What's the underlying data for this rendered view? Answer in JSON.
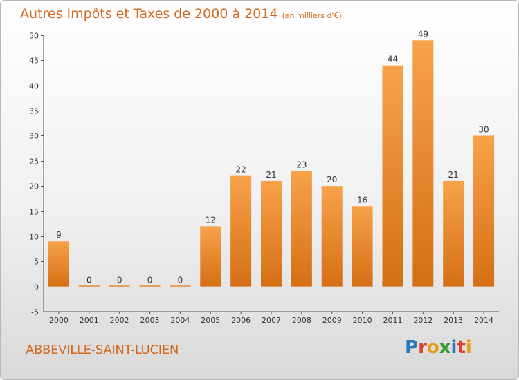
{
  "title": "Autres Impôts et Taxes de 2000 à 2014",
  "subtitle": "(en milliers d'€)",
  "commune": "ABBEVILLE-SAINT-LUCIEN",
  "logo": {
    "letters": [
      "P",
      "r",
      "o",
      "x",
      "i",
      "t",
      "i"
    ],
    "colors": [
      "#2a7ab8",
      "#e0402a",
      "#e89c1a",
      "#3a9a3a",
      "#2a7ab8",
      "#e0402a",
      "#e89c1a"
    ]
  },
  "colors": {
    "bar_light": "#f7a24a",
    "bar_dark": "#d56f16",
    "accent": "#d2691e"
  },
  "chart_data": {
    "type": "bar",
    "categories": [
      "2000",
      "2001",
      "2002",
      "2003",
      "2004",
      "2005",
      "2006",
      "2007",
      "2008",
      "2009",
      "2010",
      "2011",
      "2012",
      "2013",
      "2014"
    ],
    "values": [
      9,
      0,
      0,
      0,
      0,
      12,
      22,
      21,
      23,
      20,
      16,
      44,
      49,
      21,
      30
    ],
    "ylim": [
      -5,
      50
    ],
    "yticks": [
      -5,
      0,
      5,
      10,
      15,
      20,
      25,
      30,
      35,
      40,
      45,
      50
    ],
    "grid": false
  }
}
